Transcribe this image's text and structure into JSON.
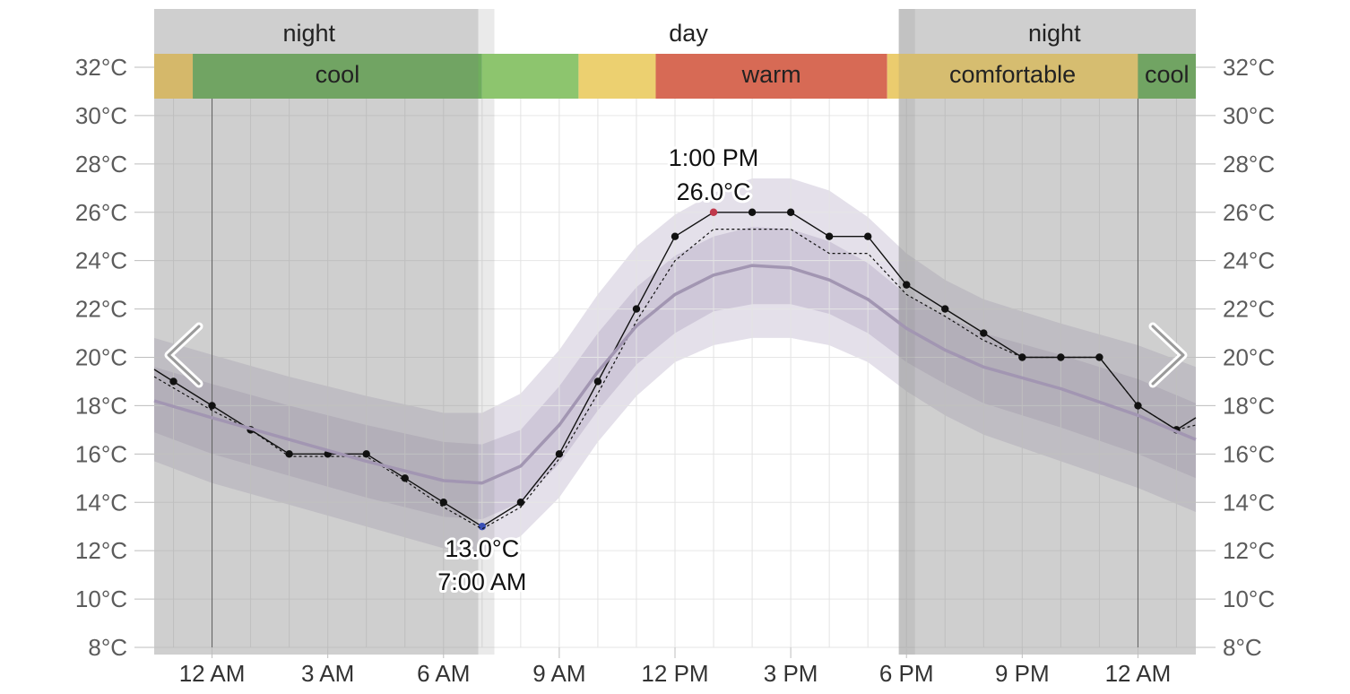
{
  "chart_data": {
    "type": "line",
    "x_unit": "hour",
    "y_unit": "°C",
    "ylim": [
      8,
      32
    ],
    "xlim": [
      -1.5,
      25.5
    ],
    "yticks": [
      8,
      10,
      12,
      14,
      16,
      18,
      20,
      22,
      24,
      26,
      28,
      30,
      32
    ],
    "ytick_labels": [
      "8°C",
      "10°C",
      "12°C",
      "14°C",
      "16°C",
      "18°C",
      "20°C",
      "22°C",
      "24°C",
      "26°C",
      "28°C",
      "30°C",
      "32°C"
    ],
    "xticks": [
      0,
      3,
      6,
      9,
      12,
      15,
      18,
      21,
      24
    ],
    "xtick_labels": [
      "12 AM",
      "3 AM",
      "6 AM",
      "9 AM",
      "12 PM",
      "3 PM",
      "6 PM",
      "9 PM",
      "12 AM"
    ],
    "grid": true,
    "day_periods": [
      {
        "label": "night",
        "start": -1.5,
        "end": 6.9
      },
      {
        "label": "day",
        "start": 6.9,
        "end": 17.8
      },
      {
        "label": "night",
        "start": 17.8,
        "end": 25.5
      }
    ],
    "comfort_bands": [
      {
        "label": "",
        "start": -1.5,
        "end": -0.5,
        "color": "#e9c667"
      },
      {
        "label": "cool",
        "start": -0.5,
        "end": 7.0,
        "color": "#6fae5e"
      },
      {
        "label": "",
        "start": 7.0,
        "end": 9.5,
        "color": "#8dc56e"
      },
      {
        "label": "",
        "start": 9.5,
        "end": 11.5,
        "color": "#ecd070"
      },
      {
        "label": "warm",
        "start": 11.5,
        "end": 17.5,
        "color": "#d76a55"
      },
      {
        "label": "comfortable",
        "start": 17.5,
        "end": 24.0,
        "color": "#ebcc6e"
      },
      {
        "label": "cool",
        "start": 24.0,
        "end": 25.5,
        "color": "#6fae5e"
      }
    ],
    "series": [
      {
        "style": "observed",
        "x": [
          -1.5,
          -1,
          0,
          1,
          2,
          3,
          4,
          5,
          6,
          7,
          8,
          9,
          10,
          11,
          12,
          13,
          14,
          15,
          16,
          17,
          18,
          19,
          20,
          21,
          22,
          23,
          24,
          25,
          25.5
        ],
        "y": [
          19.5,
          19,
          18,
          17,
          16,
          16,
          16,
          15,
          14,
          13,
          14,
          16,
          19,
          22,
          25,
          26,
          26,
          26,
          25,
          25,
          23,
          22,
          21,
          20,
          20,
          20,
          18,
          17,
          17.5
        ]
      },
      {
        "style": "dotted",
        "x": [
          -1.5,
          0,
          1,
          2,
          3,
          4,
          5,
          6,
          7,
          8,
          9,
          10,
          11,
          12,
          13,
          14,
          15,
          16,
          17,
          18,
          19,
          20,
          21,
          22,
          23,
          24,
          25,
          25.5
        ],
        "y": [
          19.2,
          17.8,
          17.0,
          15.9,
          15.9,
          15.9,
          14.9,
          13.8,
          12.9,
          13.8,
          15.8,
          18.5,
          21.5,
          24.0,
          25.3,
          25.3,
          25.3,
          24.3,
          24.3,
          22.6,
          21.7,
          20.7,
          20.0,
          20.0,
          20.0,
          18.0,
          17.0,
          17.2
        ]
      },
      {
        "style": "average",
        "x": [
          -1.5,
          0,
          2,
          4,
          6,
          7,
          8,
          9,
          10,
          11,
          12,
          13,
          14,
          15,
          16,
          17,
          18,
          19,
          20,
          22,
          24,
          25.5
        ],
        "y": [
          18.2,
          17.5,
          16.6,
          15.7,
          14.9,
          14.8,
          15.5,
          17.2,
          19.4,
          21.3,
          22.6,
          23.4,
          23.8,
          23.7,
          23.2,
          22.4,
          21.2,
          20.3,
          19.6,
          18.7,
          17.6,
          16.6
        ]
      }
    ],
    "bands": [
      {
        "name": "p25-p75",
        "x": [
          -1.5,
          0,
          2,
          4,
          6,
          7,
          8,
          9,
          10,
          11,
          12,
          13,
          14,
          15,
          16,
          17,
          18,
          19,
          20,
          22,
          24,
          25.5
        ],
        "low": [
          16.9,
          16.0,
          15.1,
          14.2,
          13.4,
          13.3,
          14.0,
          15.6,
          17.8,
          19.7,
          21.0,
          21.9,
          22.2,
          22.2,
          21.8,
          21.0,
          19.8,
          18.9,
          18.1,
          17.1,
          16.0,
          15.0
        ],
        "high": [
          19.6,
          18.9,
          18.0,
          17.2,
          16.5,
          16.4,
          17.0,
          18.8,
          21.0,
          22.9,
          24.2,
          25.0,
          25.4,
          25.3,
          24.8,
          23.9,
          22.6,
          21.7,
          21.0,
          20.1,
          19.1,
          18.1
        ]
      },
      {
        "name": "p10-p90",
        "x": [
          -1.5,
          0,
          2,
          4,
          6,
          7,
          8,
          9,
          10,
          11,
          12,
          13,
          14,
          15,
          16,
          17,
          18,
          19,
          20,
          22,
          24,
          25.5
        ],
        "low": [
          15.7,
          14.8,
          13.9,
          13.0,
          12.1,
          11.9,
          12.6,
          14.2,
          16.5,
          18.4,
          19.8,
          20.5,
          20.8,
          20.8,
          20.5,
          19.8,
          18.6,
          17.6,
          16.8,
          15.7,
          14.6,
          13.6
        ],
        "high": [
          20.8,
          20.1,
          19.2,
          18.4,
          17.7,
          17.7,
          18.5,
          20.3,
          22.6,
          24.6,
          25.9,
          26.8,
          27.4,
          27.4,
          26.9,
          25.8,
          24.3,
          23.2,
          22.4,
          21.4,
          20.5,
          19.6
        ]
      }
    ],
    "annotations": [
      {
        "kind": "max",
        "x": 13,
        "y": 26.0,
        "line1": "1:00 PM",
        "line2": "26.0°C",
        "color": "#c0394b"
      },
      {
        "kind": "min",
        "x": 7,
        "y": 13.0,
        "line1": "13.0°C",
        "line2": "7:00 AM",
        "color": "#3a4fb5"
      }
    ]
  },
  "nav": {
    "prev_icon": "chevron-left-icon",
    "next_icon": "chevron-right-icon"
  }
}
